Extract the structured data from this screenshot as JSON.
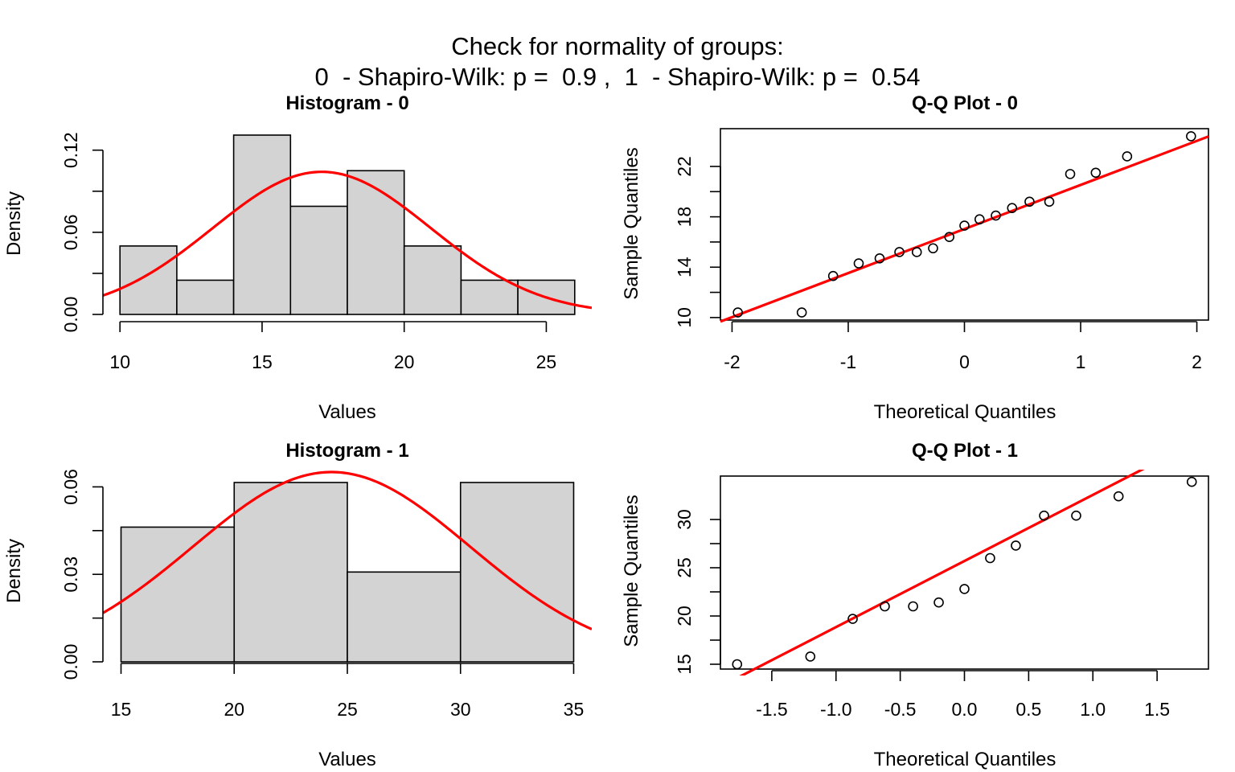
{
  "header": {
    "title": "Check for normality of groups:",
    "subtitle": "0  - Shapiro-Wilk: p =  0.9 ,  1  - Shapiro-Wilk: p =  0.54"
  },
  "colors": {
    "bar_fill": "#d3d3d3",
    "curve": "#ff0000",
    "qq_line": "#ff0000",
    "axis": "#000000"
  },
  "chart_data": [
    {
      "type": "bar",
      "title": "Histogram - 0",
      "xlabel": "Values",
      "ylabel": "Density",
      "bins": [
        {
          "from": 10,
          "to": 12,
          "density": 0.05
        },
        {
          "from": 12,
          "to": 14,
          "density": 0.025
        },
        {
          "from": 14,
          "to": 16,
          "density": 0.131
        },
        {
          "from": 16,
          "to": 18,
          "density": 0.079
        },
        {
          "from": 18,
          "to": 20,
          "density": 0.105
        },
        {
          "from": 20,
          "to": 22,
          "density": 0.05
        },
        {
          "from": 22,
          "to": 24,
          "density": 0.025
        },
        {
          "from": 24,
          "to": 26,
          "density": 0.025
        }
      ],
      "normal_curve": {
        "mean": 17.1,
        "sd": 3.83
      },
      "xlim": [
        9.4,
        26.6
      ],
      "ylim": [
        0,
        0.131
      ],
      "xticks": [
        "10",
        "15",
        "20",
        "25"
      ],
      "yticks": [
        "0.00",
        "0.06",
        "0.12"
      ]
    },
    {
      "type": "scatter",
      "title": "Q-Q Plot - 0",
      "xlabel": "Theoretical Quantiles",
      "ylabel": "Sample Quantiles",
      "points": [
        [
          -1.95,
          10.4
        ],
        [
          -1.4,
          10.4
        ],
        [
          -1.13,
          13.3
        ],
        [
          -0.91,
          14.3
        ],
        [
          -0.73,
          14.7
        ],
        [
          -0.56,
          15.2
        ],
        [
          -0.41,
          15.2
        ],
        [
          -0.27,
          15.5
        ],
        [
          -0.13,
          16.4
        ],
        [
          0.0,
          17.3
        ],
        [
          0.13,
          17.8
        ],
        [
          0.27,
          18.1
        ],
        [
          0.41,
          18.7
        ],
        [
          0.56,
          19.2
        ],
        [
          0.73,
          19.2
        ],
        [
          0.91,
          21.4
        ],
        [
          1.13,
          21.5
        ],
        [
          1.4,
          22.8
        ],
        [
          1.95,
          24.4
        ]
      ],
      "line": {
        "intercept": 17.03,
        "slope": 3.5
      },
      "xlim": [
        -2.1,
        2.1
      ],
      "ylim": [
        9.8,
        25.0
      ],
      "xticks": [
        "-2",
        "-1",
        "0",
        "1",
        "2"
      ],
      "yticks": [
        "10",
        "14",
        "18",
        "22"
      ]
    },
    {
      "type": "bar",
      "title": "Histogram - 1",
      "xlabel": "Values",
      "ylabel": "Density",
      "bins": [
        {
          "from": 15,
          "to": 20,
          "density": 0.0462
        },
        {
          "from": 20,
          "to": 25,
          "density": 0.0615
        },
        {
          "from": 25,
          "to": 30,
          "density": 0.0308
        },
        {
          "from": 30,
          "to": 35,
          "density": 0.0615
        }
      ],
      "normal_curve": {
        "mean": 24.3,
        "sd": 6.13
      },
      "xlim": [
        14.2,
        35.8
      ],
      "ylim": [
        0,
        0.0615
      ],
      "xticks": [
        "15",
        "20",
        "25",
        "30",
        "35"
      ],
      "yticks": [
        "0.00",
        "0.03",
        "0.06"
      ]
    },
    {
      "type": "scatter",
      "title": "Q-Q Plot - 1",
      "xlabel": "Theoretical Quantiles",
      "ylabel": "Sample Quantiles",
      "points": [
        [
          -1.77,
          15.0
        ],
        [
          -1.2,
          15.8
        ],
        [
          -0.87,
          19.7
        ],
        [
          -0.62,
          21.0
        ],
        [
          -0.4,
          21.0
        ],
        [
          -0.2,
          21.4
        ],
        [
          0.0,
          22.8
        ],
        [
          0.2,
          26.0
        ],
        [
          0.4,
          27.3
        ],
        [
          0.62,
          30.4
        ],
        [
          0.87,
          30.4
        ],
        [
          1.2,
          32.4
        ],
        [
          1.77,
          33.9
        ]
      ],
      "line": {
        "intercept": 25.7,
        "slope": 6.85
      },
      "xlim": [
        -1.9,
        1.9
      ],
      "ylim": [
        14.5,
        34.5
      ],
      "xticks": [
        "-1.5",
        "-1.0",
        "-0.5",
        "0.0",
        "0.5",
        "1.0",
        "1.5"
      ],
      "yticks": [
        "15",
        "20",
        "25",
        "30"
      ]
    }
  ]
}
